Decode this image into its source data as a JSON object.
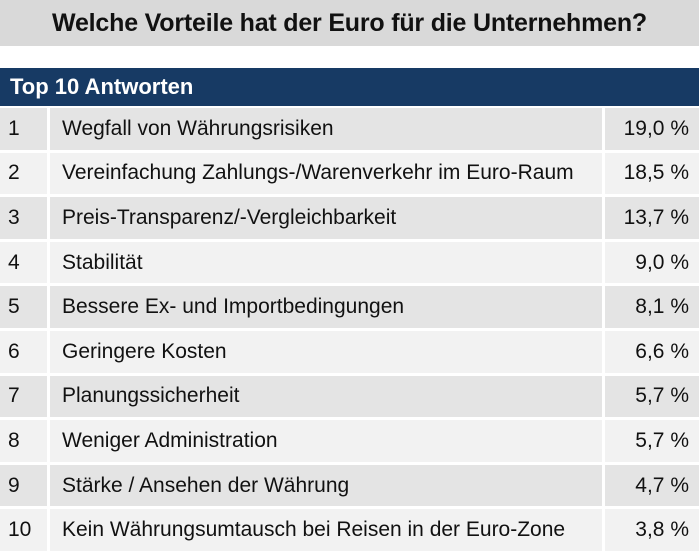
{
  "title": "Welche Vorteile hat der Euro für die Unternehmen?",
  "colors": {
    "title_bg": "#d9d9d9",
    "header_bg": "#173a64",
    "row_odd": "#e4e4e4",
    "row_even": "#f2f2f2"
  },
  "chart_data": {
    "type": "table",
    "title": "Welche Vorteile hat der Euro für die Unternehmen?",
    "header": "Top 10 Antworten",
    "rows": [
      {
        "rank": "1",
        "answer": "Wegfall von Währungsrisiken",
        "percent": "19,0 %"
      },
      {
        "rank": "2",
        "answer": "Vereinfachung Zahlungs-/Warenverkehr im Euro-Raum",
        "percent": "18,5 %"
      },
      {
        "rank": "3",
        "answer": "Preis-Transparenz/-Vergleichbarkeit",
        "percent": "13,7 %"
      },
      {
        "rank": "4",
        "answer": "Stabilität",
        "percent": "9,0 %"
      },
      {
        "rank": "5",
        "answer": "Bessere Ex- und Importbedingungen",
        "percent": "8,1 %"
      },
      {
        "rank": "6",
        "answer": "Geringere Kosten",
        "percent": "6,6 %"
      },
      {
        "rank": "7",
        "answer": "Planungssicherheit",
        "percent": "5,7 %"
      },
      {
        "rank": "8",
        "answer": "Weniger Administration",
        "percent": "5,7 %"
      },
      {
        "rank": "9",
        "answer": "Stärke / Ansehen der Währung",
        "percent": "4,7 %"
      },
      {
        "rank": "10",
        "answer": "Kein Währungsumtausch bei Reisen in der Euro-Zone",
        "percent": "3,8 %"
      }
    ]
  }
}
